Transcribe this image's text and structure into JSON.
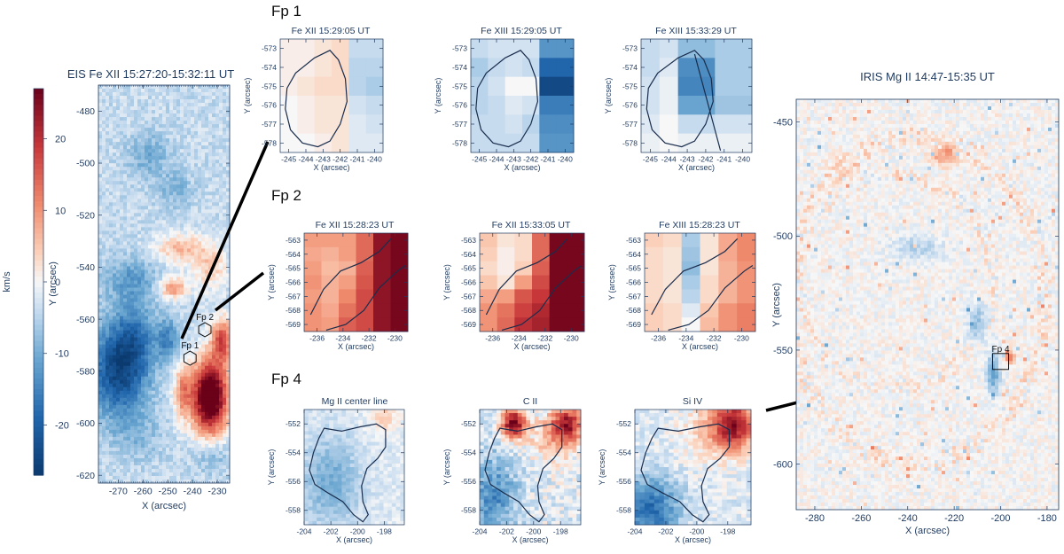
{
  "colorbar": {
    "unit": "km/s",
    "min": -27,
    "max": 27,
    "ticks": [
      -20,
      -10,
      0,
      10,
      20
    ]
  },
  "colors": {
    "neg_strong": "#0b3a6f",
    "neutral": "#f7f7f7",
    "pos_strong": "#6b0019",
    "axis": "#1f3a5f",
    "contour": "#1a2d4d"
  },
  "chart_data": [
    {
      "id": "eis",
      "type": "heatmap",
      "title": "EIS Fe XII 15:27:20-15:32:11 UT",
      "xlabel": "X (arcsec)",
      "ylabel": "Y (arcsec)",
      "xlim": [
        -278,
        -225
      ],
      "ylim": [
        -623,
        -470
      ],
      "xticks": [
        -270,
        -260,
        -250,
        -240,
        -230
      ],
      "yticks": [
        -480,
        -500,
        -520,
        -540,
        -560,
        -580,
        -600,
        -620
      ],
      "annotations": [
        {
          "label": "Fp 1",
          "x": -241,
          "y": -575
        },
        {
          "label": "Fp 2",
          "x": -235,
          "y": -564
        }
      ]
    },
    {
      "id": "fp1a",
      "type": "heatmap",
      "title": "Fe XII 15:29:05 UT",
      "xlabel": "X (arcsec)",
      "ylabel": "Y (arcsec)",
      "xlim": [
        -245.5,
        -239.5
      ],
      "ylim": [
        -578.5,
        -572.5
      ],
      "xticks": [
        -245,
        -244,
        -243,
        -242,
        -241,
        -240
      ],
      "yticks": [
        -573,
        -574,
        -575,
        -576,
        -577,
        -578
      ],
      "values": [
        [
          1,
          1,
          2,
          3,
          -4,
          -4
        ],
        [
          1,
          1,
          2,
          3,
          -5,
          -5
        ],
        [
          1,
          2,
          3,
          3,
          -5,
          -6
        ],
        [
          0,
          1,
          2,
          2,
          -3,
          -4
        ],
        [
          0,
          1,
          2,
          2,
          -2,
          -3
        ],
        [
          0,
          0,
          1,
          2,
          -2,
          -2
        ]
      ]
    },
    {
      "id": "fp1b",
      "type": "heatmap",
      "title": "Fe XIII 15:29:05 UT",
      "xlabel": "X (arcsec)",
      "ylabel": "Y (arcsec)",
      "xlim": [
        -245.5,
        -239.5
      ],
      "ylim": [
        -578.5,
        -572.5
      ],
      "xticks": [
        -245,
        -244,
        -243,
        -242,
        -241,
        -240
      ],
      "yticks": [
        -573,
        -574,
        -575,
        -576,
        -577,
        -578
      ],
      "values": [
        [
          -4,
          -3,
          -3,
          -3,
          -13,
          -13
        ],
        [
          -6,
          -4,
          -3,
          -4,
          -19,
          -19
        ],
        [
          -5,
          -3,
          0,
          0,
          -24,
          -24
        ],
        [
          -5,
          -4,
          -2,
          -3,
          -16,
          -16
        ],
        [
          -4,
          -4,
          -3,
          -5,
          -14,
          -14
        ],
        [
          -4,
          -4,
          -4,
          -4,
          -13,
          -13
        ]
      ]
    },
    {
      "id": "fp1c",
      "type": "heatmap",
      "title": "Fe XIII 15:33:29 UT",
      "xlabel": "X (arcsec)",
      "ylabel": "Y (arcsec)",
      "xlim": [
        -245.5,
        -239.5
      ],
      "ylim": [
        -578.5,
        -572.5
      ],
      "xticks": [
        -245,
        -244,
        -243,
        -242,
        -241,
        -240
      ],
      "yticks": [
        -573,
        -574,
        -575,
        -576,
        -577,
        -578
      ],
      "values": [
        [
          -4,
          -3,
          -8,
          -8,
          -6,
          -6
        ],
        [
          -4,
          -2,
          -14,
          -14,
          -6,
          -6
        ],
        [
          -3,
          -1,
          -15,
          -15,
          -6,
          -6
        ],
        [
          -3,
          -1,
          -11,
          -11,
          -7,
          -7
        ],
        [
          -2,
          0,
          -4,
          -4,
          -3,
          -3
        ],
        [
          -1,
          0,
          -1,
          -1,
          -1,
          -1
        ]
      ]
    },
    {
      "id": "fp2a",
      "type": "heatmap",
      "title": "Fe XII 15:28:23 UT",
      "xlabel": "X (arcsec)",
      "ylabel": "Y (arcsec)",
      "xlim": [
        -237,
        -229
      ],
      "ylim": [
        -569.5,
        -562.5
      ],
      "xticks": [
        -236,
        -234,
        -232,
        -230
      ],
      "yticks": [
        -563,
        -564,
        -565,
        -566,
        -567,
        -568,
        -569
      ],
      "values": [
        [
          9,
          9,
          9,
          14,
          24,
          26
        ],
        [
          8,
          7,
          9,
          14,
          24,
          26
        ],
        [
          9,
          6,
          7,
          15,
          24,
          26
        ],
        [
          10,
          7,
          9,
          16,
          24,
          26
        ],
        [
          9,
          7,
          11,
          17,
          24,
          26
        ],
        [
          10,
          8,
          13,
          17,
          24,
          26
        ],
        [
          10,
          9,
          15,
          17,
          24,
          26
        ]
      ]
    },
    {
      "id": "fp2b",
      "type": "heatmap",
      "title": "Fe XII 15:33:05 UT",
      "xlabel": "X (arcsec)",
      "ylabel": "Y (arcsec)",
      "xlim": [
        -237,
        -229
      ],
      "ylim": [
        -569.5,
        -562.5
      ],
      "xticks": [
        -236,
        -234,
        -232,
        -230
      ],
      "yticks": [
        -563,
        -564,
        -565,
        -566,
        -567,
        -568,
        -569
      ],
      "values": [
        [
          5,
          2,
          3,
          14,
          26,
          26
        ],
        [
          4,
          1,
          3,
          14,
          26,
          26
        ],
        [
          3,
          1,
          4,
          15,
          26,
          26
        ],
        [
          5,
          2,
          9,
          17,
          26,
          26
        ],
        [
          8,
          9,
          16,
          19,
          26,
          26
        ],
        [
          10,
          13,
          18,
          21,
          26,
          26
        ],
        [
          10,
          14,
          20,
          22,
          26,
          26
        ]
      ]
    },
    {
      "id": "fp2c",
      "type": "heatmap",
      "title": "Fe XIII 15:28:23 UT",
      "xlabel": "X (arcsec)",
      "ylabel": "Y (arcsec)",
      "xlim": [
        -237,
        -229
      ],
      "ylim": [
        -569.5,
        -562.5
      ],
      "xticks": [
        -236,
        -234,
        -232,
        -230
      ],
      "yticks": [
        -563,
        -564,
        -565,
        -566,
        -567,
        -568,
        -569
      ],
      "values": [
        [
          4,
          3,
          -6,
          2,
          8,
          11
        ],
        [
          3,
          2,
          -7,
          2,
          8,
          11
        ],
        [
          3,
          2,
          -8,
          2,
          7,
          10
        ],
        [
          3,
          2,
          -6,
          3,
          7,
          10
        ],
        [
          3,
          2,
          -5,
          3,
          7,
          10
        ],
        [
          4,
          3,
          -2,
          5,
          10,
          12
        ],
        [
          4,
          3,
          0,
          6,
          10,
          12
        ]
      ]
    },
    {
      "id": "fp4a",
      "type": "heatmap",
      "title": "Mg II center line",
      "xlabel": "X (arcsec)",
      "ylabel": "Y (arcsec)",
      "xlim": [
        -204,
        -196.5
      ],
      "ylim": [
        -559,
        -551
      ]
    },
    {
      "id": "fp4b",
      "type": "heatmap",
      "title": "C II",
      "xlabel": "X (arcsec)",
      "ylabel": "Y (arcsec)",
      "xlim": [
        -204,
        -196.5
      ],
      "ylim": [
        -559,
        -551
      ]
    },
    {
      "id": "fp4c",
      "type": "heatmap",
      "title": "Si IV",
      "xlabel": "X (arcsec)",
      "ylabel": "Y (arcsec)",
      "xlim": [
        -204,
        -196.5
      ],
      "ylim": [
        -559,
        -551
      ]
    },
    {
      "id": "iris",
      "type": "heatmap",
      "title": "IRIS Mg II 14:47-15:35 UT",
      "xlabel": "X (arcsec)",
      "ylabel": "Y (arcsec)",
      "xlim": [
        -288,
        -175
      ],
      "ylim": [
        -620,
        -440
      ],
      "xticks": [
        -280,
        -260,
        -240,
        -220,
        -200,
        -180
      ],
      "yticks": [
        -450,
        -500,
        -550,
        -600
      ],
      "annotations": [
        {
          "label": "Fp 4",
          "x": -200,
          "y": -555
        }
      ]
    }
  ],
  "fp4_ticks": {
    "xticks": [
      -204,
      -202,
      -200,
      -198
    ],
    "yticks": [
      -552,
      -554,
      -556,
      -558
    ]
  },
  "row_labels": {
    "fp1": "Fp 1",
    "fp2": "Fp 2",
    "fp4": "Fp 4"
  }
}
